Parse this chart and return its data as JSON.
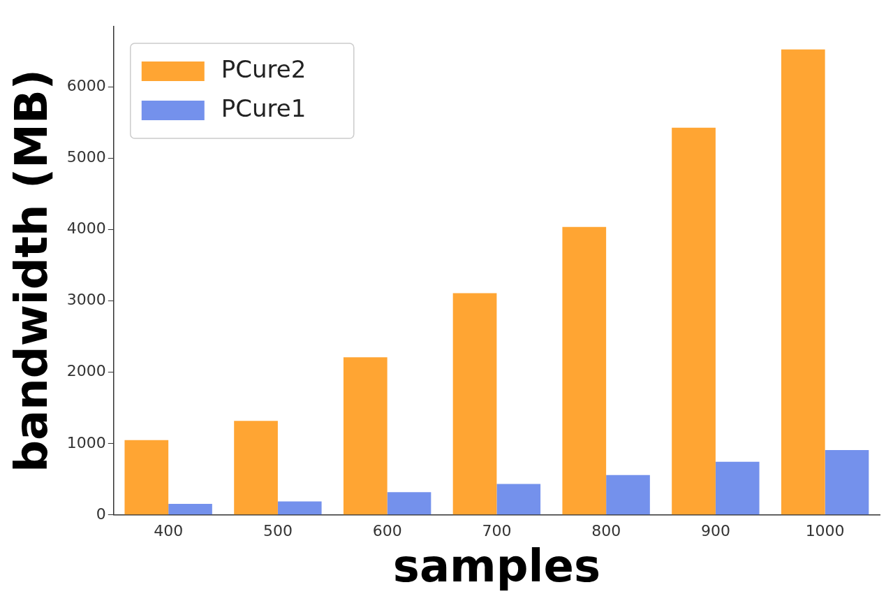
{
  "chart_data": {
    "type": "bar",
    "xlabel": "samples",
    "ylabel": "bandwidth (MB)",
    "categories": [
      "400",
      "500",
      "600",
      "700",
      "800",
      "900",
      "1000"
    ],
    "series": [
      {
        "name": "PCure2",
        "color": "#ffa533",
        "values": [
          1050,
          1320,
          2210,
          3110,
          4040,
          5430,
          6530
        ]
      },
      {
        "name": "PCure1",
        "color": "#7491ec",
        "values": [
          155,
          190,
          320,
          435,
          560,
          745,
          910
        ]
      }
    ],
    "ylim": [
      0,
      6850
    ],
    "yticks": [
      0,
      1000,
      2000,
      3000,
      4000,
      5000,
      6000
    ],
    "grid": false,
    "legend": "top left"
  }
}
